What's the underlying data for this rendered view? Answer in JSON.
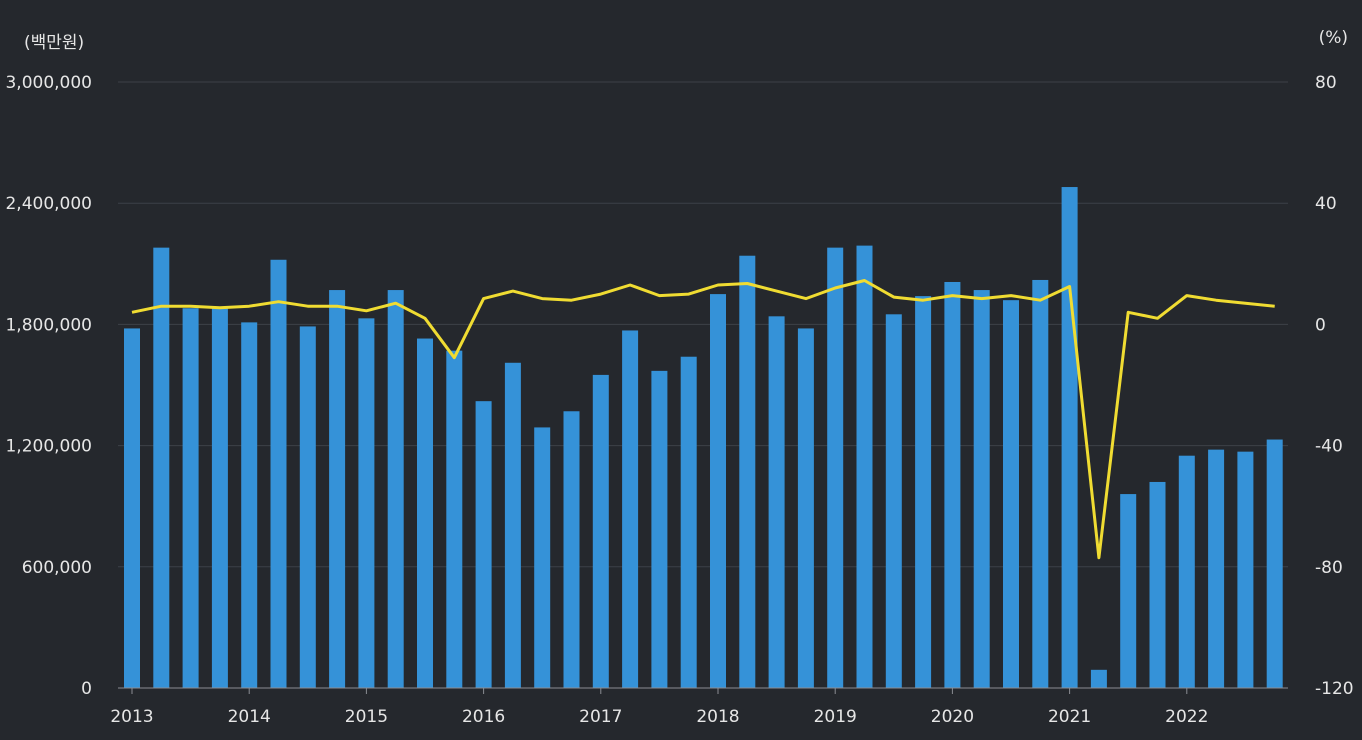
{
  "chart_data": {
    "type": "bar+line",
    "left_axis": {
      "unit_label": "(백만원)",
      "ylim": [
        0,
        3000000
      ],
      "ticks": [
        0,
        600000,
        1200000,
        1800000,
        2400000,
        3000000
      ],
      "tick_labels": [
        "0",
        "600,000",
        "1,200,000",
        "1,800,000",
        "2,400,000",
        "3,000,000"
      ]
    },
    "right_axis": {
      "unit_label": "(%)",
      "ylim": [
        -120,
        80
      ],
      "ticks": [
        -120,
        -80,
        -40,
        0,
        40,
        80
      ],
      "tick_labels": [
        "-120",
        "-80",
        "-40",
        "0",
        "40",
        "80"
      ]
    },
    "x_tick_labels": [
      "2013",
      "2014",
      "2015",
      "2016",
      "2017",
      "2018",
      "2019",
      "2020",
      "2021",
      "2022"
    ],
    "periods": [
      "2013.1Q",
      "2013.2Q",
      "2013.3Q",
      "2013.4Q",
      "2014.1Q",
      "2014.2Q",
      "2014.3Q",
      "2014.4Q",
      "2015.1Q",
      "2015.2Q",
      "2015.3Q",
      "2015.4Q",
      "2016.1Q",
      "2016.2Q",
      "2016.3Q",
      "2016.4Q",
      "2017.1Q",
      "2017.2Q",
      "2017.3Q",
      "2017.4Q",
      "2018.1Q",
      "2018.2Q",
      "2018.3Q",
      "2018.4Q",
      "2019.1Q",
      "2019.2Q",
      "2019.3Q",
      "2019.4Q",
      "2020.1Q",
      "2020.2Q",
      "2020.3Q",
      "2020.4Q",
      "2021.1Q",
      "2021.2Q",
      "2021.3Q",
      "2021.4Q",
      "2022.1Q",
      "2022.2Q",
      "2022.3Q",
      "2022.4Q"
    ],
    "series": [
      {
        "name": "value",
        "type": "bar",
        "axis": "left",
        "color": "#3592d8",
        "values": [
          1780000,
          2180000,
          1880000,
          1880000,
          1810000,
          2120000,
          1790000,
          1970000,
          1830000,
          1970000,
          1730000,
          1670000,
          1420000,
          1610000,
          1290000,
          1370000,
          1550000,
          1770000,
          1570000,
          1640000,
          1950000,
          2140000,
          1840000,
          1780000,
          2180000,
          2190000,
          1850000,
          1940000,
          2010000,
          1970000,
          1920000,
          2020000,
          2480000,
          90000,
          960000,
          1020000,
          1150000,
          1180000,
          1170000,
          1230000
        ]
      },
      {
        "name": "growth_rate",
        "type": "line",
        "axis": "right",
        "color": "#f0dc32",
        "values": [
          4,
          6,
          6,
          5.5,
          6,
          7.5,
          6,
          6,
          4.5,
          7,
          2,
          -11,
          8.5,
          11,
          8.5,
          8,
          10,
          13,
          9.5,
          10,
          13,
          13.5,
          11,
          8.5,
          12,
          14.5,
          9,
          8,
          9.5,
          8.5,
          9.5,
          8,
          12.5,
          -77,
          4,
          2,
          9.5,
          8,
          7,
          6
        ]
      }
    ]
  }
}
